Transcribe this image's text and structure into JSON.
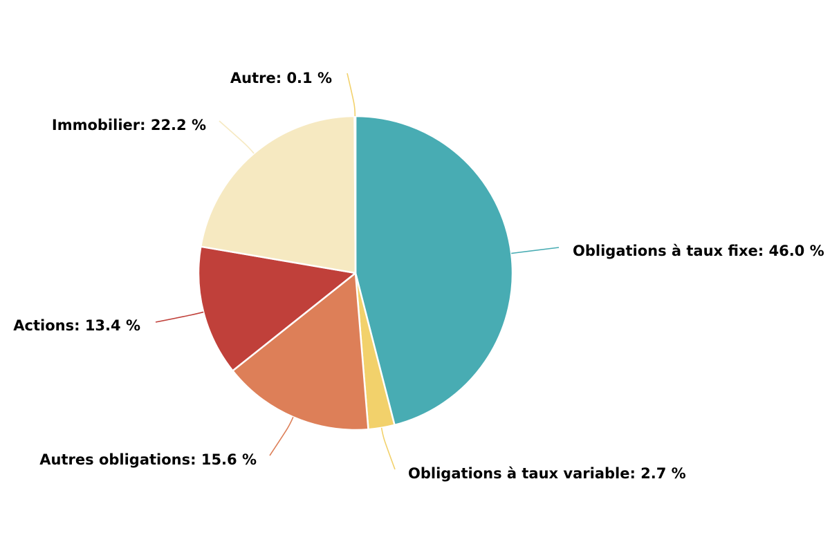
{
  "chart_data": {
    "type": "pie",
    "slices": [
      {
        "name": "Obligations à taux fixe",
        "value": 46.0,
        "label": "Obligations à taux fixe: 46.0 %",
        "color": "#48acb3"
      },
      {
        "name": "Obligations à taux variable",
        "value": 2.7,
        "label": "Obligations à taux variable: 2.7 %",
        "color": "#f2d16b"
      },
      {
        "name": "Autres obligations",
        "value": 15.6,
        "label": "Autres obligations: 15.6 %",
        "color": "#dd7f58"
      },
      {
        "name": "Actions",
        "value": 13.4,
        "label": "Actions: 13.4 %",
        "color": "#c0403a"
      },
      {
        "name": "Immobilier",
        "value": 22.2,
        "label": "Immobilier: 22.2 %",
        "color": "#f6e9c1"
      },
      {
        "name": "Autre",
        "value": 0.1,
        "label": "Autre: 0.1 %",
        "color": "#f2d16b"
      }
    ],
    "title": "",
    "legend": "none",
    "data_labels": "outside-with-connectors"
  }
}
